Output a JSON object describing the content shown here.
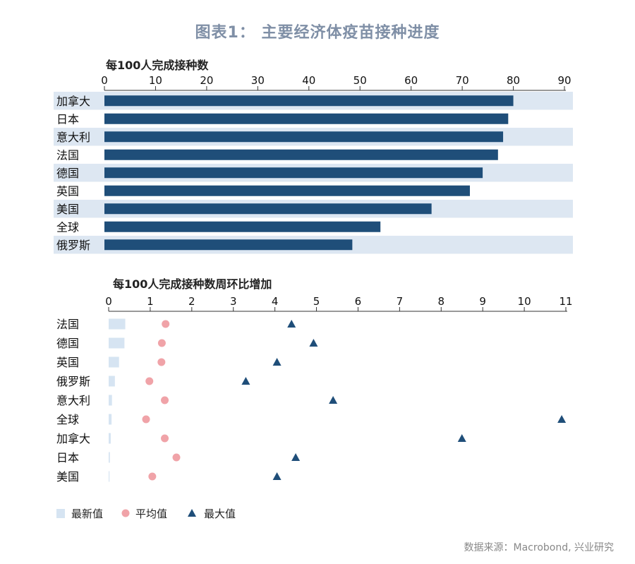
{
  "figure_title": "图表1： 主要经济体疫苗接种进度",
  "source": "数据来源：Macrobond, 兴业研究",
  "colors": {
    "bar": "#1f4e79",
    "band": "#dde7f2",
    "latest": "#d6e4f2",
    "average": "#f0a3a8",
    "max": "#1f4e79"
  },
  "chart_data": [
    {
      "type": "bar",
      "orientation": "horizontal",
      "title": "每100人完成接种数",
      "categories": [
        "加拿大",
        "日本",
        "意大利",
        "法国",
        "德国",
        "英国",
        "美国",
        "全球",
        "俄罗斯"
      ],
      "values": [
        80,
        79,
        78,
        77,
        74,
        71.5,
        64,
        54,
        48.5
      ],
      "xlim": [
        0,
        90
      ],
      "xticks": [
        0,
        10,
        20,
        30,
        40,
        50,
        60,
        70,
        80,
        90
      ],
      "axis_position": "top"
    },
    {
      "type": "scatter",
      "title": "每100人完成接种数周环比增加",
      "categories": [
        "法国",
        "德国",
        "英国",
        "俄罗斯",
        "意大利",
        "全球",
        "加拿大",
        "日本",
        "美国"
      ],
      "series": [
        {
          "name": "最新值",
          "marker": "bar",
          "values": [
            0.4,
            0.38,
            0.25,
            0.15,
            0.08,
            0.07,
            0.05,
            0.03,
            0.02
          ]
        },
        {
          "name": "平均值",
          "marker": "circle",
          "values": [
            1.37,
            1.28,
            1.27,
            0.98,
            1.35,
            0.9,
            1.35,
            1.63,
            1.05
          ]
        },
        {
          "name": "最大值",
          "marker": "triangle",
          "values": [
            4.4,
            4.93,
            4.05,
            3.3,
            5.4,
            10.9,
            8.5,
            4.5,
            4.05
          ]
        }
      ],
      "xlim": [
        0,
        11
      ],
      "xticks": [
        0,
        1,
        2,
        3,
        4,
        5,
        6,
        7,
        8,
        9,
        10,
        11
      ],
      "axis_position": "top",
      "legend_position": "bottom-left"
    }
  ]
}
